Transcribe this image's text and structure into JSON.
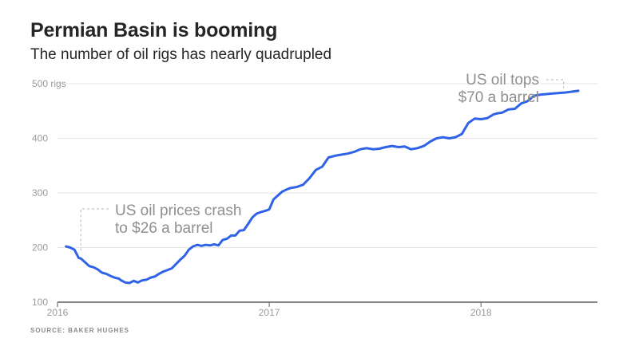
{
  "title": "Permian Basin is booming",
  "subtitle": "The number of oil rigs has nearly quadrupled",
  "source": "SOURCE: BAKER HUGHES",
  "colors": {
    "line": "#2f62e6",
    "grid": "#e6e6e6",
    "axis": "#5b5b5b"
  },
  "chart_data": {
    "type": "line",
    "title": "Permian Basin is booming",
    "subtitle": "The number of oil rigs has nearly quadrupled",
    "ylim": [
      100,
      500
    ],
    "xlim": [
      2016.0,
      2018.55
    ],
    "grid": true,
    "y_ticks": [
      {
        "value": 500,
        "label": "500 rigs"
      },
      {
        "value": 400,
        "label": "400"
      },
      {
        "value": 300,
        "label": "300"
      },
      {
        "value": 200,
        "label": "200"
      },
      {
        "value": 100,
        "label": "100"
      }
    ],
    "x_ticks": [
      {
        "value": 2016,
        "label": "2016"
      },
      {
        "value": 2017,
        "label": "2017"
      },
      {
        "value": 2018,
        "label": "2018"
      }
    ],
    "series": [
      {
        "x": [
          2016.04,
          2016.06,
          2016.08,
          2016.1,
          2016.11,
          2016.13,
          2016.15,
          2016.17,
          2016.19,
          2016.21,
          2016.23,
          2016.25,
          2016.27,
          2016.29,
          2016.3,
          2016.32,
          2016.34,
          2016.36,
          2016.38,
          2016.4,
          2016.42,
          2016.44,
          2016.46,
          2016.48,
          2016.5,
          2016.52,
          2016.54,
          2016.56,
          2016.58,
          2016.6,
          2016.62,
          2016.64,
          2016.66,
          2016.68,
          2016.7,
          2016.72,
          2016.74,
          2016.76,
          2016.78,
          2016.8,
          2016.82,
          2016.84,
          2016.86,
          2016.88,
          2016.9,
          2016.92,
          2016.94,
          2016.96,
          2016.98,
          2017.0,
          2017.02,
          2017.04,
          2017.06,
          2017.08,
          2017.1,
          2017.13,
          2017.16,
          2017.19,
          2017.22,
          2017.25,
          2017.28,
          2017.31,
          2017.34,
          2017.37,
          2017.4,
          2017.43,
          2017.46,
          2017.49,
          2017.52,
          2017.55,
          2017.58,
          2017.61,
          2017.64,
          2017.67,
          2017.7,
          2017.73,
          2017.76,
          2017.79,
          2017.82,
          2017.85,
          2017.88,
          2017.91,
          2017.94,
          2017.97,
          2018.0,
          2018.03,
          2018.06,
          2018.08,
          2018.1,
          2018.13,
          2018.16,
          2018.19,
          2018.22,
          2018.25,
          2018.28,
          2018.31,
          2018.34,
          2018.37,
          2018.4,
          2018.42,
          2018.44,
          2018.46
        ],
        "values": [
          202,
          200,
          196,
          181,
          180,
          173,
          166,
          164,
          160,
          154,
          152,
          148,
          145,
          143,
          140,
          136,
          135,
          139,
          136,
          140,
          141,
          145,
          147,
          152,
          156,
          159,
          162,
          170,
          178,
          185,
          196,
          202,
          205,
          203,
          205,
          204,
          206,
          204,
          214,
          216,
          222,
          222,
          231,
          232,
          243,
          255,
          262,
          265,
          267,
          270,
          288,
          295,
          302,
          306,
          309,
          311,
          315,
          327,
          342,
          348,
          365,
          368,
          370,
          372,
          375,
          380,
          382,
          380,
          381,
          384,
          386,
          384,
          385,
          380,
          382,
          386,
          394,
          400,
          402,
          400,
          402,
          408,
          428,
          436,
          435,
          437,
          444,
          446,
          447,
          453,
          454,
          464,
          468,
          478,
          480,
          481,
          482,
          483,
          484,
          485,
          486,
          487
        ]
      }
    ],
    "annotations": [
      {
        "lines": [
          "US oil prices crash",
          "to $26 a barrel"
        ],
        "x": 2016.11,
        "y": 180
      },
      {
        "lines": [
          "US oil tops",
          "$70 a barrel"
        ],
        "x": 2018.39,
        "y": 480
      }
    ]
  }
}
